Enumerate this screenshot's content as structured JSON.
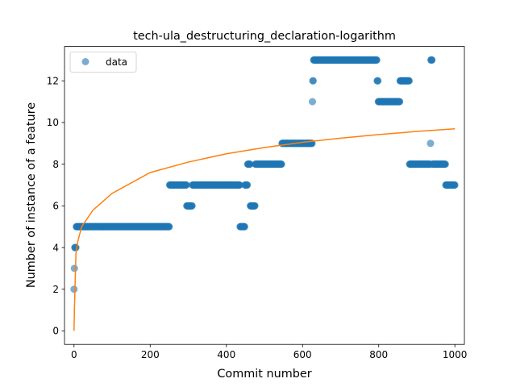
{
  "chart_data": {
    "type": "scatter",
    "title": "tech-ula_destructuring_declaration-logarithm",
    "xlabel": "Commit number",
    "ylabel": "Number of instance of a feature",
    "xlim": [
      -25,
      1025
    ],
    "ylim": [
      -0.65,
      13.65
    ],
    "xticks": [
      0,
      200,
      400,
      600,
      800,
      1000
    ],
    "yticks": [
      0,
      2,
      4,
      6,
      8,
      10,
      12
    ],
    "xtick_labels": [
      "0",
      "200",
      "400",
      "600",
      "800",
      "1000"
    ],
    "ytick_labels": [
      "0",
      "2",
      "4",
      "6",
      "8",
      "10",
      "12"
    ],
    "grid": false,
    "legend": {
      "position": "upper-left",
      "entries": [
        "data"
      ]
    },
    "series": [
      {
        "name": "data",
        "kind": "scatter",
        "color": "#1f77b4",
        "segments": [
          {
            "x_start": 0,
            "x_end": 0,
            "y": 2
          },
          {
            "x_start": 1,
            "x_end": 1,
            "y": 3
          },
          {
            "x_start": 2,
            "x_end": 5,
            "y": 4
          },
          {
            "x_start": 6,
            "x_end": 250,
            "y": 5
          },
          {
            "x_start": 251,
            "x_end": 295,
            "y": 7
          },
          {
            "x_start": 296,
            "x_end": 310,
            "y": 6
          },
          {
            "x_start": 311,
            "x_end": 435,
            "y": 7
          },
          {
            "x_start": 436,
            "x_end": 448,
            "y": 5
          },
          {
            "x_start": 449,
            "x_end": 455,
            "y": 7
          },
          {
            "x_start": 456,
            "x_end": 462,
            "y": 8
          },
          {
            "x_start": 463,
            "x_end": 475,
            "y": 6
          },
          {
            "x_start": 476,
            "x_end": 545,
            "y": 8
          },
          {
            "x_start": 546,
            "x_end": 625,
            "y": 9
          },
          {
            "x_start": 626,
            "x_end": 626,
            "y": 11
          },
          {
            "x_start": 627,
            "x_end": 628,
            "y": 12
          },
          {
            "x_start": 629,
            "x_end": 795,
            "y": 13
          },
          {
            "x_start": 796,
            "x_end": 798,
            "y": 12
          },
          {
            "x_start": 799,
            "x_end": 855,
            "y": 11
          },
          {
            "x_start": 856,
            "x_end": 880,
            "y": 12
          },
          {
            "x_start": 881,
            "x_end": 935,
            "y": 8
          },
          {
            "x_start": 936,
            "x_end": 936,
            "y": 9
          },
          {
            "x_start": 937,
            "x_end": 940,
            "y": 13
          },
          {
            "x_start": 941,
            "x_end": 975,
            "y": 8
          },
          {
            "x_start": 976,
            "x_end": 1000,
            "y": 7
          }
        ]
      },
      {
        "name": "",
        "kind": "line",
        "color": "#ff7f0e",
        "model": "logarithmic",
        "x_range": [
          0,
          1000
        ],
        "points": [
          [
            0,
            0.0
          ],
          [
            1,
            1.0
          ],
          [
            5,
            3.7
          ],
          [
            10,
            4.3
          ],
          [
            20,
            5.0
          ],
          [
            50,
            5.8
          ],
          [
            100,
            6.6
          ],
          [
            200,
            7.6
          ],
          [
            300,
            8.1
          ],
          [
            400,
            8.5
          ],
          [
            500,
            8.8
          ],
          [
            600,
            9.05
          ],
          [
            700,
            9.25
          ],
          [
            800,
            9.42
          ],
          [
            900,
            9.57
          ],
          [
            1000,
            9.7
          ]
        ]
      }
    ]
  }
}
